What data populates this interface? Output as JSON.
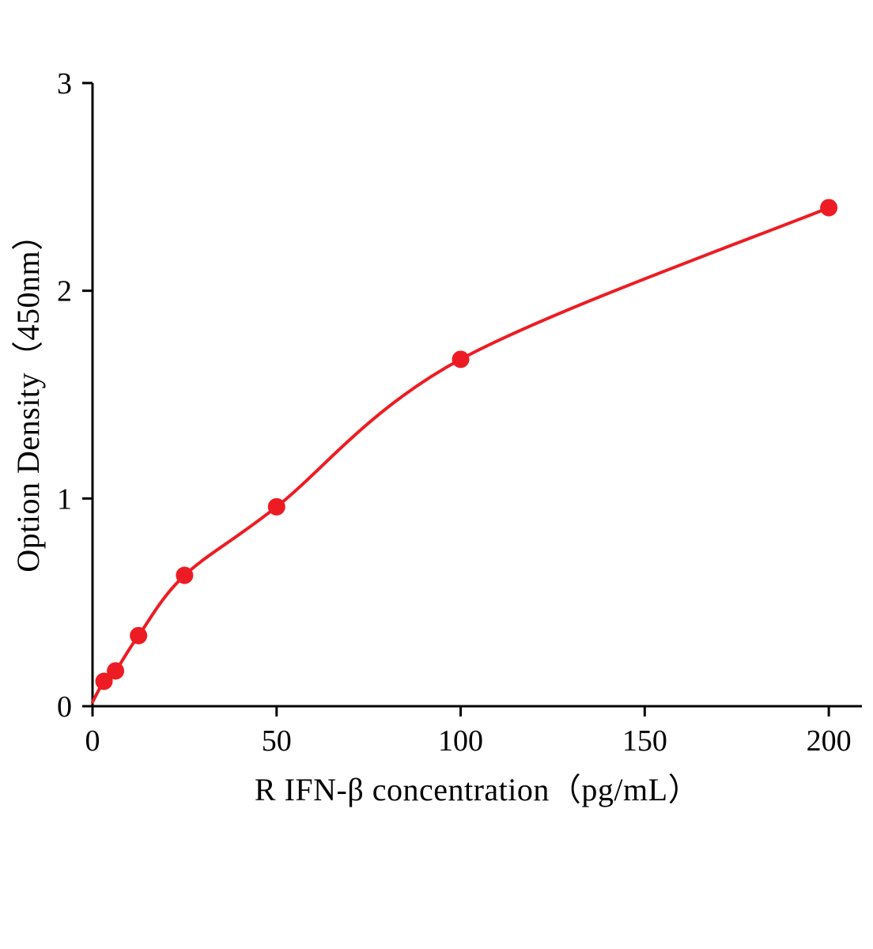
{
  "chart_data": {
    "type": "scatter",
    "title": "",
    "xlabel": "R IFN-β concentration（pg/mL）",
    "ylabel": "Option Density（450nm）",
    "x": [
      3.125,
      6.25,
      12.5,
      25,
      50,
      100,
      200
    ],
    "y": [
      0.12,
      0.17,
      0.34,
      0.63,
      0.96,
      1.67,
      2.4
    ],
    "curve_start": {
      "x": 0,
      "y": 0.02
    },
    "xlim": [
      0,
      209
    ],
    "ylim": [
      0,
      3
    ],
    "x_ticks": [
      0,
      50,
      100,
      150,
      200
    ],
    "y_ticks": [
      0,
      1,
      2,
      3
    ],
    "marker_color": "#ed1c24",
    "line_color": "#ed1c24",
    "axis_color": "#000000",
    "grid": false,
    "legend": "none"
  }
}
